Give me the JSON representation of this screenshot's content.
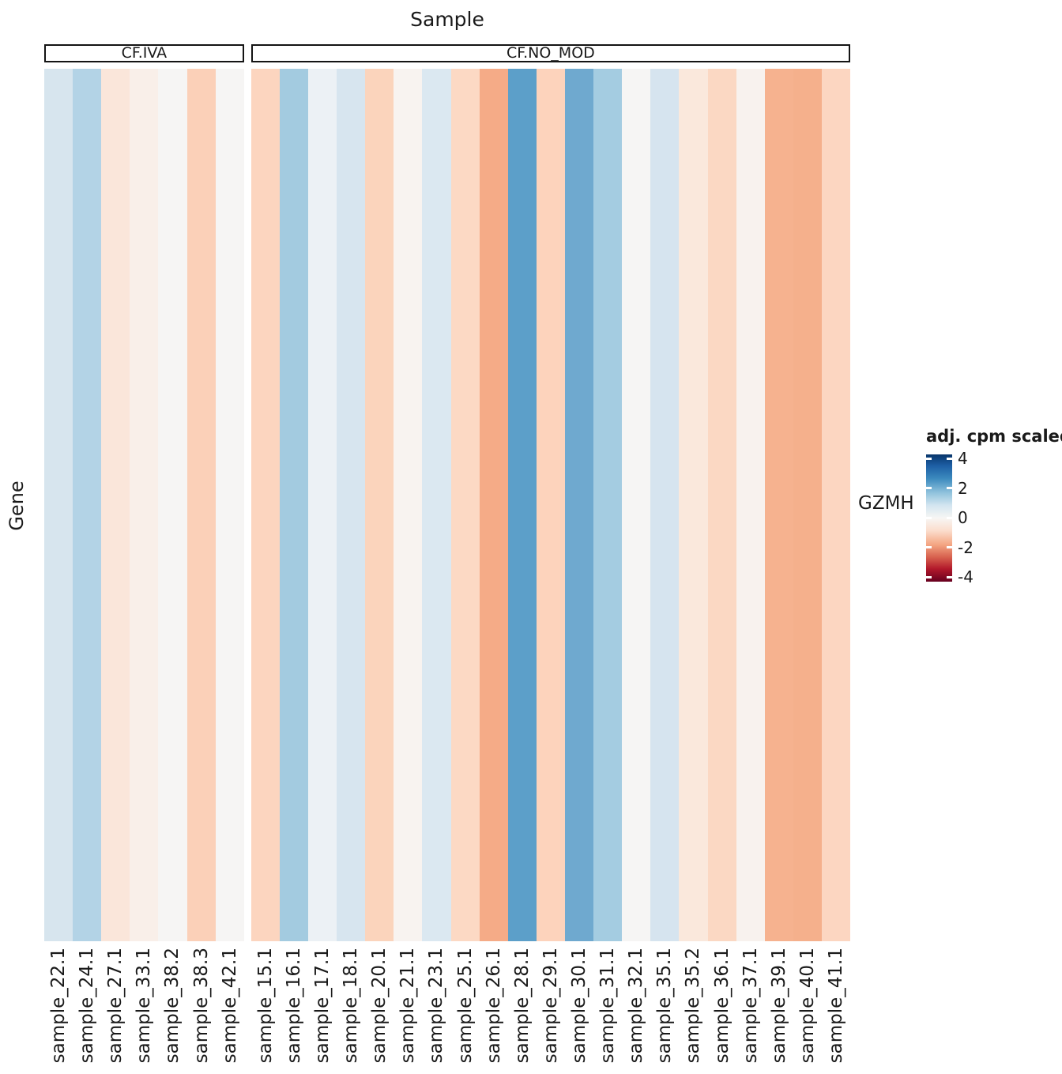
{
  "title": "Sample",
  "y_axis_label": "Gene",
  "row_label": "GZMH",
  "legend": {
    "title": "adj. cpm scaled",
    "ticks": [
      4,
      2,
      0,
      -2,
      -4
    ],
    "color_top": "#08366b",
    "color_mid": "#f7f6f4",
    "color_bottom": "#67001f"
  },
  "chart_data": {
    "type": "heatmap",
    "title": "Sample",
    "xlabel": "Sample",
    "ylabel": "Gene",
    "rows": [
      "GZMH"
    ],
    "legend_title": "adj. cpm scaled",
    "colorscale": {
      "palette": "RdBu diverging (blue = high, red = low)",
      "tick_values": [
        4,
        2,
        0,
        -2,
        -4
      ]
    },
    "groups": [
      {
        "label": "CF.IVA",
        "samples": [
          {
            "name": "sample_22.1",
            "color": "#d7e5ee",
            "value": 0.8
          },
          {
            "name": "sample_24.1",
            "color": "#b3d3e6",
            "value": 1.1
          },
          {
            "name": "sample_27.1",
            "color": "#fae6da",
            "value": -0.4
          },
          {
            "name": "sample_33.1",
            "color": "#f9efe9",
            "value": -0.2
          },
          {
            "name": "sample_38.2",
            "color": "#f6f5f4",
            "value": 0.0
          },
          {
            "name": "sample_38.3",
            "color": "#fbd0b8",
            "value": -0.9
          },
          {
            "name": "sample_42.1",
            "color": "#f6f5f4",
            "value": 0.0
          }
        ]
      },
      {
        "label": "CF.NO_MOD",
        "samples": [
          {
            "name": "sample_15.1",
            "color": "#fcd5bf",
            "value": -0.8
          },
          {
            "name": "sample_16.1",
            "color": "#a3cbe0",
            "value": 1.3
          },
          {
            "name": "sample_17.1",
            "color": "#ecf1f5",
            "value": 0.4
          },
          {
            "name": "sample_18.1",
            "color": "#d7e5ef",
            "value": 0.8
          },
          {
            "name": "sample_20.1",
            "color": "#fbd4bc",
            "value": -0.8
          },
          {
            "name": "sample_21.1",
            "color": "#f8f3f0",
            "value": -0.1
          },
          {
            "name": "sample_23.1",
            "color": "#dbe8f1",
            "value": 0.7
          },
          {
            "name": "sample_25.1",
            "color": "#fcd9c4",
            "value": -0.7
          },
          {
            "name": "sample_26.1",
            "color": "#f5ab87",
            "value": -1.8
          },
          {
            "name": "sample_28.1",
            "color": "#5c9fc9",
            "value": 2.0
          },
          {
            "name": "sample_29.1",
            "color": "#fdd3bc",
            "value": -0.8
          },
          {
            "name": "sample_30.1",
            "color": "#6fa9cf",
            "value": 1.8
          },
          {
            "name": "sample_31.1",
            "color": "#a4cce1",
            "value": 1.3
          },
          {
            "name": "sample_32.1",
            "color": "#f6f5f4",
            "value": 0.0
          },
          {
            "name": "sample_35.1",
            "color": "#d6e4ef",
            "value": 0.8
          },
          {
            "name": "sample_35.2",
            "color": "#fae8dc",
            "value": -0.4
          },
          {
            "name": "sample_36.1",
            "color": "#fbd8c3",
            "value": -0.7
          },
          {
            "name": "sample_37.1",
            "color": "#f8f2ee",
            "value": -0.15
          },
          {
            "name": "sample_39.1",
            "color": "#f6b28f",
            "value": -1.6
          },
          {
            "name": "sample_40.1",
            "color": "#f5b08c",
            "value": -1.65
          },
          {
            "name": "sample_41.1",
            "color": "#fcd6c1",
            "value": -0.75
          }
        ]
      }
    ]
  }
}
